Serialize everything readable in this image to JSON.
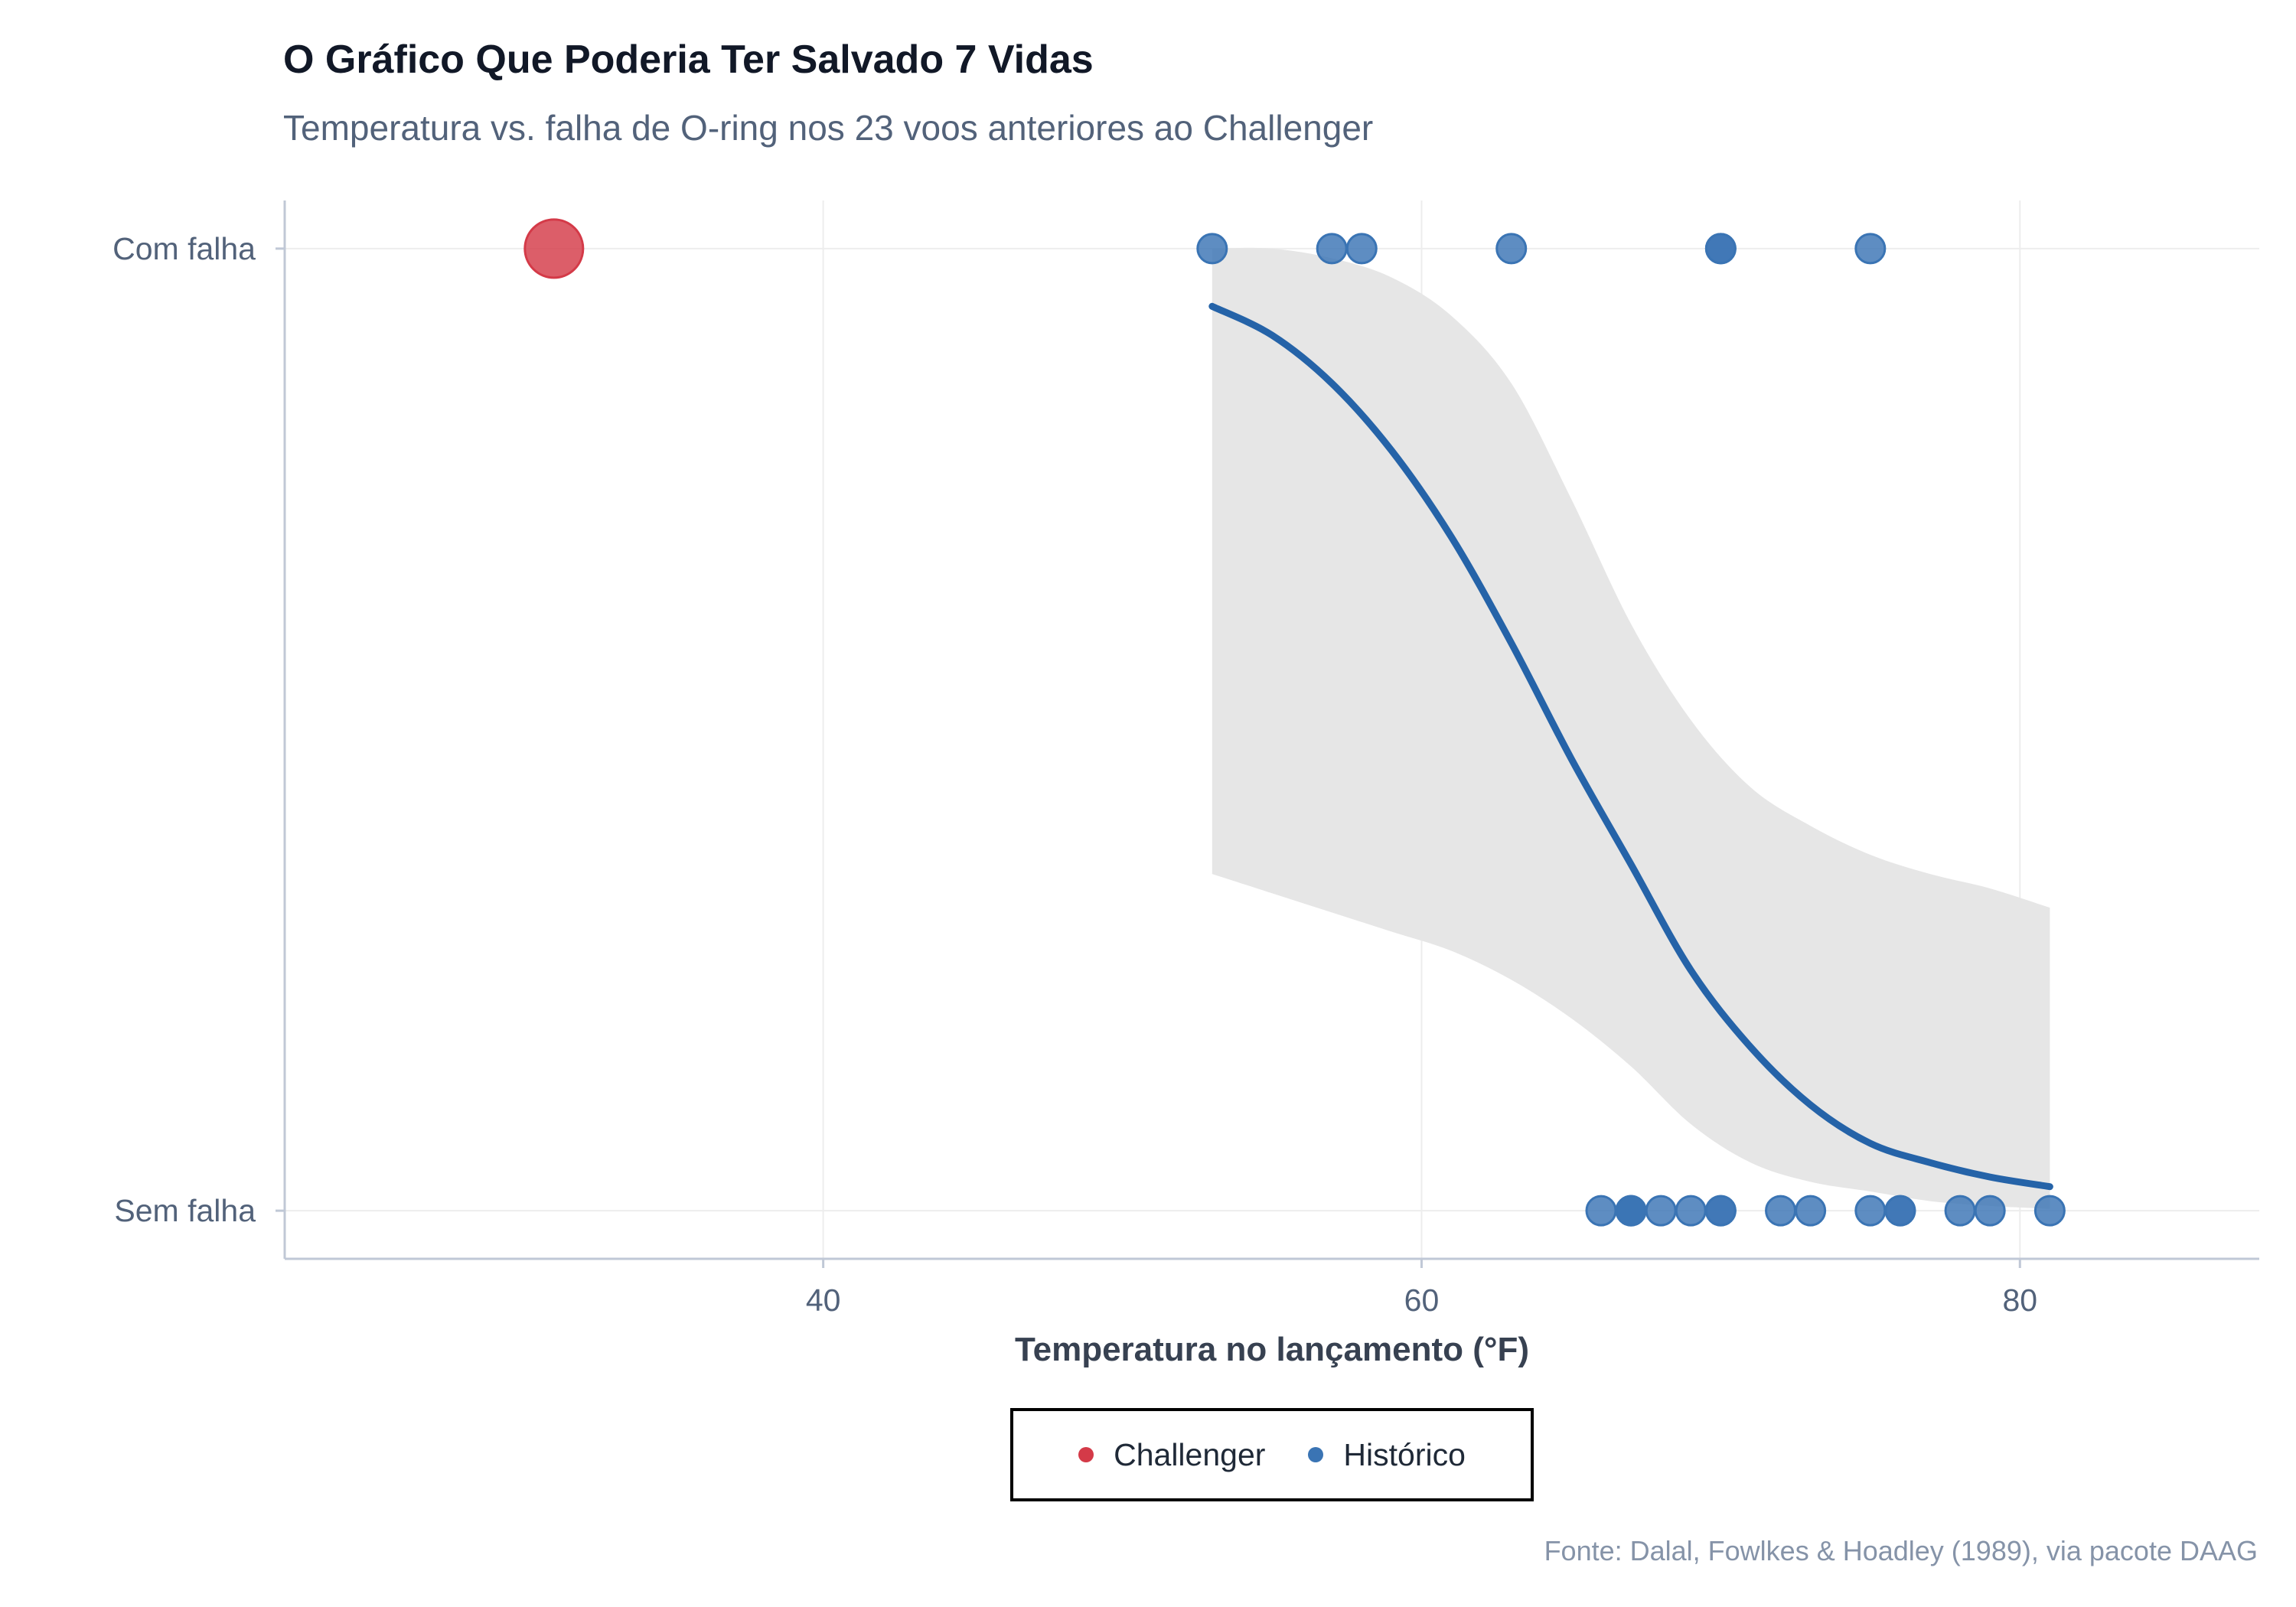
{
  "colors": {
    "challenger": "#d43a48",
    "historico": "#3a74b4",
    "curve": "#2563a8",
    "band": "#e6e6e6",
    "grid": "#ededed",
    "axis": "#c0c8d6"
  },
  "chart_data": {
    "type": "scatter",
    "title": "O Gráfico Que Poderia Ter Salvado 7 Vidas",
    "subtitle": "Temperatura vs. falha de O-ring nos 23 voos anteriores ao Challenger",
    "xlabel": "Temperatura no lançamento (°F)",
    "ylabel": "",
    "xlim": [
      22,
      88
    ],
    "ylim": [
      -0.05,
      1.05
    ],
    "x_ticks": [
      40,
      60,
      80
    ],
    "y_ticks": [
      {
        "value": 0,
        "label": "Sem falha"
      },
      {
        "value": 1,
        "label": "Com falha"
      }
    ],
    "grid": true,
    "legend_position": "bottom",
    "caption": "Fonte: Dalal, Fowlkes & Hoadley (1989), via pacote DAAG",
    "series": [
      {
        "name": "Challenger",
        "color_key": "challenger",
        "points": [
          {
            "x": 31,
            "y": 1
          }
        ]
      },
      {
        "name": "Histórico",
        "color_key": "historico",
        "points": [
          {
            "x": 53,
            "y": 1
          },
          {
            "x": 57,
            "y": 1
          },
          {
            "x": 58,
            "y": 1
          },
          {
            "x": 63,
            "y": 1
          },
          {
            "x": 70,
            "y": 1
          },
          {
            "x": 70,
            "y": 1
          },
          {
            "x": 75,
            "y": 1
          },
          {
            "x": 66,
            "y": 0
          },
          {
            "x": 67,
            "y": 0
          },
          {
            "x": 67,
            "y": 0
          },
          {
            "x": 67,
            "y": 0
          },
          {
            "x": 68,
            "y": 0
          },
          {
            "x": 69,
            "y": 0
          },
          {
            "x": 70,
            "y": 0
          },
          {
            "x": 70,
            "y": 0
          },
          {
            "x": 72,
            "y": 0
          },
          {
            "x": 73,
            "y": 0
          },
          {
            "x": 75,
            "y": 0
          },
          {
            "x": 76,
            "y": 0
          },
          {
            "x": 76,
            "y": 0
          },
          {
            "x": 78,
            "y": 0
          },
          {
            "x": 79,
            "y": 0
          },
          {
            "x": 81,
            "y": 0
          }
        ]
      }
    ],
    "fit": {
      "type": "logistic",
      "x_range": [
        53,
        81
      ],
      "points": [
        {
          "x": 53,
          "y": 0.94,
          "lo": 0.35,
          "hi": 1.0
        },
        {
          "x": 55,
          "y": 0.91,
          "lo": 0.33,
          "hi": 1.0
        },
        {
          "x": 57,
          "y": 0.86,
          "lo": 0.31,
          "hi": 0.99
        },
        {
          "x": 59,
          "y": 0.79,
          "lo": 0.29,
          "hi": 0.97
        },
        {
          "x": 61,
          "y": 0.7,
          "lo": 0.27,
          "hi": 0.93
        },
        {
          "x": 63,
          "y": 0.59,
          "lo": 0.24,
          "hi": 0.86
        },
        {
          "x": 65,
          "y": 0.47,
          "lo": 0.2,
          "hi": 0.74
        },
        {
          "x": 67,
          "y": 0.36,
          "lo": 0.15,
          "hi": 0.61
        },
        {
          "x": 69,
          "y": 0.25,
          "lo": 0.09,
          "hi": 0.51
        },
        {
          "x": 71,
          "y": 0.17,
          "lo": 0.05,
          "hi": 0.44
        },
        {
          "x": 73,
          "y": 0.11,
          "lo": 0.03,
          "hi": 0.4
        },
        {
          "x": 75,
          "y": 0.07,
          "lo": 0.02,
          "hi": 0.37
        },
        {
          "x": 77,
          "y": 0.05,
          "lo": 0.01,
          "hi": 0.35
        },
        {
          "x": 79,
          "y": 0.035,
          "lo": 0.005,
          "hi": 0.335
        },
        {
          "x": 81,
          "y": 0.025,
          "lo": 0.002,
          "hi": 0.315
        }
      ]
    }
  }
}
